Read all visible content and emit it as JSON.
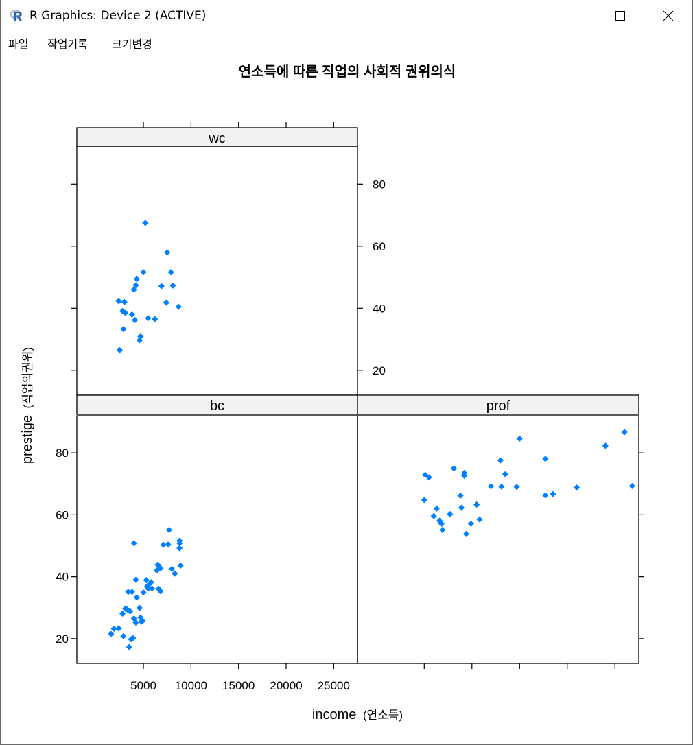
{
  "window": {
    "title": "R Graphics: Device 2 (ACTIVE)",
    "icon": "r-logo-icon",
    "controls": [
      "minimize-icon",
      "maximize-icon",
      "close-icon"
    ]
  },
  "menu": {
    "items": [
      "파일",
      "작업기록",
      "크기변경"
    ]
  },
  "chart": {
    "title": "연소득에 따른 직업의 사회적 권위의식",
    "xlabel_main": "income",
    "xlabel_sub": "(연소득)",
    "ylabel_main": "prestige",
    "ylabel_sub": "(직업의권위)"
  },
  "colors": {
    "points": "#0080ff",
    "strip": "#f2f2f2",
    "axis": "#000000"
  },
  "chart_data": {
    "type": "scatter",
    "xlim": [
      -2000,
      27500
    ],
    "ylim": [
      12,
      92
    ],
    "x_ticks": [
      5000,
      10000,
      15000,
      20000,
      25000
    ],
    "y_ticks": [
      20,
      40,
      60,
      80
    ],
    "panels": [
      {
        "name": "wc",
        "points": [
          [
            2400,
            42.3
          ],
          [
            2800,
            39.1
          ],
          [
            3100,
            38.5
          ],
          [
            3000,
            42.0
          ],
          [
            2900,
            33.3
          ],
          [
            2500,
            26.5
          ],
          [
            3800,
            38.0
          ],
          [
            4000,
            46.0
          ],
          [
            4200,
            47.4
          ],
          [
            4300,
            49.4
          ],
          [
            4100,
            36.2
          ],
          [
            4700,
            30.9
          ],
          [
            4600,
            29.7
          ],
          [
            5000,
            51.6
          ],
          [
            5200,
            67.5
          ],
          [
            5500,
            36.8
          ],
          [
            6200,
            36.5
          ],
          [
            6900,
            47.1
          ],
          [
            7400,
            41.8
          ],
          [
            7500,
            58.0
          ],
          [
            7900,
            51.6
          ],
          [
            8100,
            47.3
          ],
          [
            8700,
            40.5
          ]
        ]
      },
      {
        "name": "bc",
        "points": [
          [
            1600,
            21.5
          ],
          [
            1900,
            23.2
          ],
          [
            2400,
            23.3
          ],
          [
            2800,
            28.1
          ],
          [
            2900,
            20.8
          ],
          [
            3100,
            29.7
          ],
          [
            3300,
            29.4
          ],
          [
            3400,
            35.1
          ],
          [
            3500,
            17.3
          ],
          [
            3600,
            28.8
          ],
          [
            3700,
            19.8
          ],
          [
            3800,
            35.1
          ],
          [
            3900,
            20.2
          ],
          [
            4000,
            50.8
          ],
          [
            4000,
            26.5
          ],
          [
            4200,
            39.0
          ],
          [
            4200,
            25.2
          ],
          [
            4300,
            33.3
          ],
          [
            4600,
            29.9
          ],
          [
            4700,
            26.8
          ],
          [
            4900,
            25.7
          ],
          [
            5000,
            34.9
          ],
          [
            4800,
            25.5
          ],
          [
            5300,
            38.9
          ],
          [
            5400,
            36.9
          ],
          [
            5500,
            36.2
          ],
          [
            5600,
            37.5
          ],
          [
            5800,
            38.2
          ],
          [
            5900,
            36.2
          ],
          [
            6400,
            42.0
          ],
          [
            6500,
            43.9
          ],
          [
            6600,
            43.5
          ],
          [
            6600,
            36.1
          ],
          [
            6800,
            42.7
          ],
          [
            6800,
            35.3
          ],
          [
            7100,
            50.3
          ],
          [
            7600,
            50.4
          ],
          [
            7700,
            55.1
          ],
          [
            8000,
            42.5
          ],
          [
            8300,
            41.0
          ],
          [
            8800,
            51.6
          ],
          [
            8800,
            50.8
          ],
          [
            8800,
            49.2
          ],
          [
            8900,
            43.6
          ]
        ]
      },
      {
        "name": "prof",
        "points": [
          [
            5000,
            64.8
          ],
          [
            5100,
            72.9
          ],
          [
            5500,
            72.1
          ],
          [
            6000,
            59.6
          ],
          [
            6300,
            62.0
          ],
          [
            6600,
            58.1
          ],
          [
            6800,
            57.1
          ],
          [
            6900,
            55.1
          ],
          [
            7700,
            60.2
          ],
          [
            8100,
            75.0
          ],
          [
            8800,
            66.2
          ],
          [
            8900,
            62.3
          ],
          [
            9200,
            72.6
          ],
          [
            9200,
            73.5
          ],
          [
            9400,
            53.8
          ],
          [
            9900,
            57.1
          ],
          [
            10500,
            63.3
          ],
          [
            10800,
            58.5
          ],
          [
            12000,
            69.2
          ],
          [
            13100,
            69.1
          ],
          [
            13000,
            77.6
          ],
          [
            13500,
            73.1
          ],
          [
            14700,
            69.0
          ],
          [
            15000,
            84.6
          ],
          [
            17700,
            78.1
          ],
          [
            17700,
            66.3
          ],
          [
            18500,
            66.7
          ],
          [
            21000,
            68.8
          ],
          [
            24000,
            82.3
          ],
          [
            26000,
            86.7
          ],
          [
            26800,
            69.3
          ]
        ]
      }
    ]
  }
}
